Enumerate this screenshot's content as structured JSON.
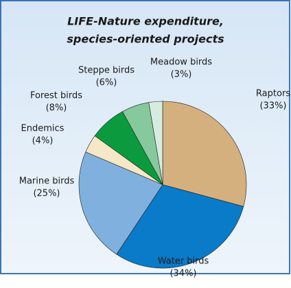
{
  "chart_data": {
    "type": "pie",
    "title": [
      "LIFE-Nature expenditure,",
      "species-oriented projects"
    ],
    "categories": [
      "Raptors",
      "Water birds",
      "Marine birds",
      "Endemics",
      "Forest birds",
      "Steppe birds",
      "Meadow birds"
    ],
    "values": [
      33,
      34,
      25,
      4,
      8,
      6,
      3
    ],
    "value_labels": [
      "(33%)",
      "(34%)",
      "(25%)",
      "(4%)",
      "(8%)",
      "(6%)",
      "(3%)"
    ],
    "colors": [
      "#d4b07f",
      "#0a7bc8",
      "#80b1de",
      "#f6e7c6",
      "#0b9b3e",
      "#86c99c",
      "#d5ece0"
    ]
  }
}
